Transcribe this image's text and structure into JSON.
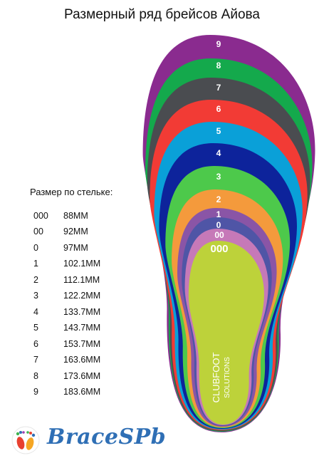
{
  "title": "Размерный ряд брейсов Айова",
  "insole_heading": "Размер по стельке:",
  "sizes": [
    {
      "code": "000",
      "length": "88MM",
      "color": "#bdd23a"
    },
    {
      "code": "00",
      "length": "92MM",
      "color": "#c679b8"
    },
    {
      "code": "0",
      "length": "97MM",
      "color": "#4f55a6"
    },
    {
      "code": "1",
      "length": "102.1MM",
      "color": "#8a55a6"
    },
    {
      "code": "2",
      "length": "112.1MM",
      "color": "#f49a3c"
    },
    {
      "code": "3",
      "length": "122.2MM",
      "color": "#4dc94b"
    },
    {
      "code": "4",
      "length": "133.7MM",
      "color": "#0d239b"
    },
    {
      "code": "5",
      "length": "143.7MM",
      "color": "#0aa0d8"
    },
    {
      "code": "6",
      "length": "153.7MM",
      "color": "#f23b35"
    },
    {
      "code": "7",
      "length": "163.6MM",
      "color": "#4a4c50"
    },
    {
      "code": "8",
      "length": "173.6MM",
      "color": "#14a94c"
    },
    {
      "code": "9",
      "length": "183.6MM",
      "color": "#8a2b8f"
    }
  ],
  "insole_brand": {
    "line1": "CLUBFOOT",
    "line2": "SOLUTIONS"
  },
  "footer": {
    "brand": "BraceSPb",
    "logo_icon": "colorful-feet-logo-icon"
  }
}
